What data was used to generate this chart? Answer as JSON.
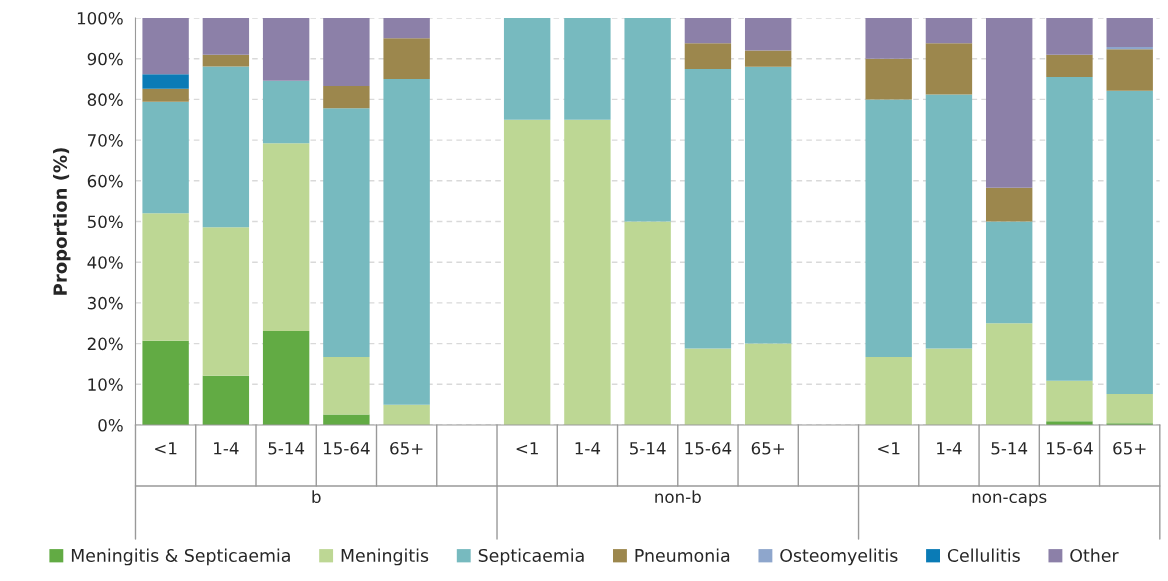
{
  "chart_data": {
    "type": "bar",
    "stacked": true,
    "ylabel": "Proportion (%)",
    "categories": [
      "<1",
      "1-4",
      "5-14",
      "15-64",
      "65+",
      null,
      "<1",
      "1-4",
      "5-14",
      "15-64",
      "65+",
      null,
      "<1",
      "1-4",
      "5-14",
      "15-64",
      "65+"
    ],
    "annotations": [
      "b",
      "non-b",
      "non-caps"
    ],
    "series": [
      {
        "name": "Meningitis & Septicaemia",
        "color": "#62ab44",
        "values": [
          20.7,
          12.1,
          23.1,
          2.6,
          0,
          null,
          0,
          0,
          0,
          0,
          0,
          null,
          0,
          0,
          0,
          0.9,
          0.4
        ]
      },
      {
        "name": "Meningitis",
        "color": "#bdd794",
        "values": [
          31.3,
          36.5,
          46.1,
          14.1,
          5,
          null,
          75,
          75,
          50,
          18.8,
          20,
          null,
          16.7,
          18.8,
          25,
          10,
          7.2
        ]
      },
      {
        "name": "Septicaemia",
        "color": "#77babf",
        "values": [
          27.4,
          39.5,
          15.4,
          61.1,
          80,
          null,
          25,
          25,
          50,
          68.7,
          68,
          null,
          63.3,
          62.4,
          25,
          74.6,
          74.5
        ]
      },
      {
        "name": "Pneumonia",
        "color": "#9c874d",
        "values": [
          3.2,
          2.9,
          0,
          5.5,
          10,
          null,
          0,
          0,
          0,
          6.3,
          4,
          null,
          10,
          12.6,
          8.3,
          5.5,
          10.2
        ]
      },
      {
        "name": "Osteomyelitis",
        "color": "#8ea6cc",
        "values": [
          0,
          0,
          0,
          0,
          0,
          null,
          0,
          0,
          0,
          0,
          0,
          null,
          0,
          0,
          0,
          0,
          0.6
        ]
      },
      {
        "name": "Cellulitis",
        "color": "#0a7bb6",
        "values": [
          3.6,
          0,
          0,
          0,
          0,
          null,
          0,
          0,
          0,
          0,
          0,
          null,
          0,
          0,
          0,
          0,
          0
        ]
      },
      {
        "name": "Other",
        "color": "#8c80a8",
        "values": [
          13.8,
          9,
          15.4,
          16.7,
          5,
          null,
          0,
          0,
          0,
          6.2,
          8,
          null,
          10,
          6.2,
          41.7,
          9,
          7.1
        ]
      }
    ],
    "ylim": [
      0,
      100
    ],
    "yticks": [
      {
        "value": 0,
        "label": "0%"
      },
      {
        "value": 10,
        "label": "10%"
      },
      {
        "value": 20,
        "label": "20%"
      },
      {
        "value": 30,
        "label": "30%"
      },
      {
        "value": 40,
        "label": "40%"
      },
      {
        "value": 50,
        "label": "50%"
      },
      {
        "value": 60,
        "label": "60%"
      },
      {
        "value": 70,
        "label": "70%"
      },
      {
        "value": 80,
        "label": "80%"
      },
      {
        "value": 90,
        "label": "90%"
      },
      {
        "value": 100,
        "label": "100%"
      }
    ],
    "grid": "y",
    "legend": "bottom"
  }
}
